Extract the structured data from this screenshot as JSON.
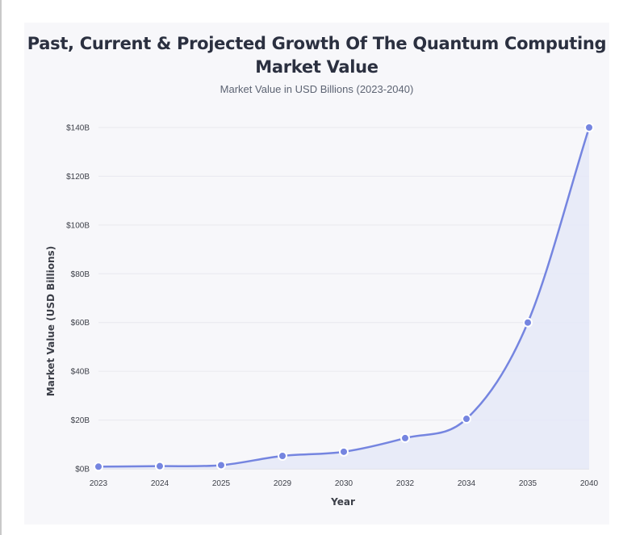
{
  "chart_data": {
    "type": "area",
    "title": "Past, Current & Projected Growth Of The Quantum Computing Market Value",
    "subtitle": "Market Value in USD Billions (2023-2040)",
    "xlabel": "Year",
    "ylabel": "Market Value (USD Billions)",
    "categories": [
      "2023",
      "2024",
      "2025",
      "2029",
      "2030",
      "2032",
      "2034",
      "2035",
      "2040"
    ],
    "series": [
      {
        "name": "Market Value",
        "values": [
          0.9,
          1.1,
          1.5,
          5.3,
          7.0,
          12.6,
          20.5,
          60.0,
          140.0
        ]
      }
    ],
    "ylim": [
      0,
      140
    ],
    "yticks": [
      0,
      20,
      40,
      60,
      80,
      100,
      120,
      140
    ],
    "ytick_prefix": "$",
    "ytick_suffix": "B",
    "grid": true,
    "line_color": "#7585e0",
    "fill_color": "#e6e9f7",
    "point_color": "#7585e0"
  }
}
